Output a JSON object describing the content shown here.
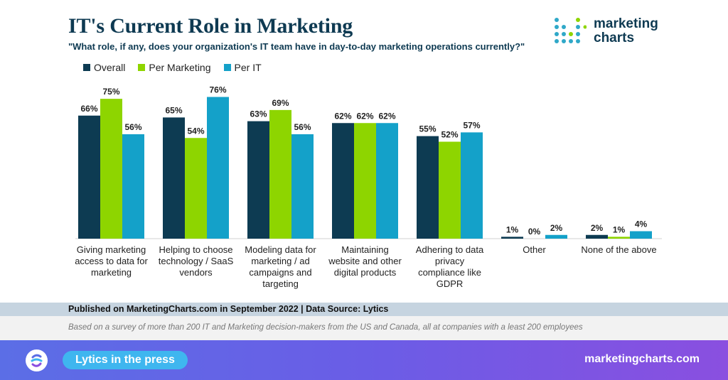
{
  "header": {
    "title": "IT's Current Role in Marketing",
    "subtitle": "\"What role, if any, does your organization's IT team have in day-to-day marketing operations currently?\""
  },
  "logo": {
    "line1": "marketing",
    "line2": "charts"
  },
  "colors": {
    "overall": "#0d3b52",
    "marketing": "#8ed500",
    "it": "#14a1c9"
  },
  "chart_data": {
    "type": "bar",
    "categories": [
      [
        "Giving marketing",
        "access to data for",
        "marketing"
      ],
      [
        "Helping to choose",
        "technology / SaaS",
        "vendors"
      ],
      [
        "Modeling data for",
        "marketing / ad",
        "campaigns and",
        "targeting"
      ],
      [
        "Maintaining",
        "website and other",
        "digital products"
      ],
      [
        "Adhering to data",
        "privacy",
        "compliance like",
        "GDPR"
      ],
      [
        "Other"
      ],
      [
        "None of the above"
      ]
    ],
    "series": [
      {
        "name": "Overall",
        "values": [
          66,
          65,
          63,
          62,
          55,
          1,
          2
        ]
      },
      {
        "name": "Per Marketing",
        "values": [
          75,
          54,
          69,
          62,
          52,
          0,
          1
        ]
      },
      {
        "name": "Per IT",
        "values": [
          56,
          76,
          56,
          62,
          57,
          2,
          4
        ]
      }
    ],
    "value_suffix": "%",
    "ylim": [
      0,
      80
    ],
    "grid": false,
    "legend": "top-left"
  },
  "footer": {
    "published": "Published on MarketingCharts.com in September 2022 | Data Source: Lytics",
    "note": "Based on a survey of more than 200 IT and Marketing decision-makers from the US and Canada, all at companies with a least 200 employees",
    "press_label": "Lytics in the press",
    "url": "marketingcharts.com"
  }
}
